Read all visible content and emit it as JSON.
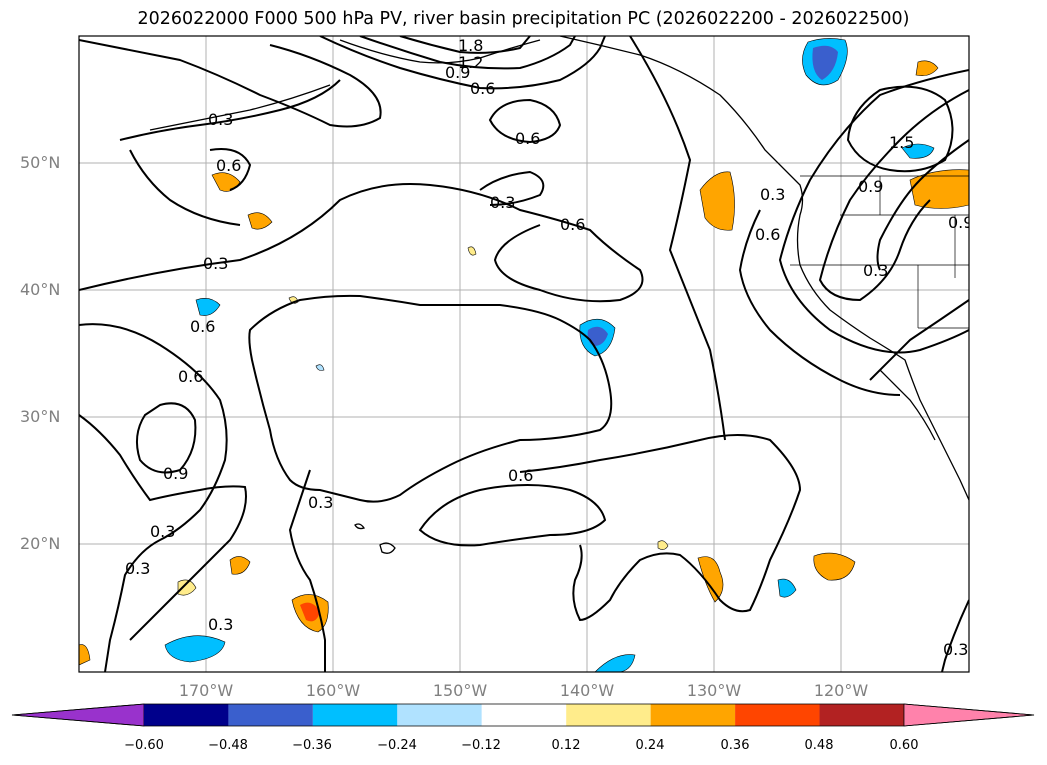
{
  "title": "2026022000 F000 500 hPa PV, river basin precipitation PC (2026022200 - 2026022500)",
  "lat_labels": [
    "50°N",
    "40°N",
    "30°N",
    "20°N"
  ],
  "lon_labels": [
    "170°W",
    "160°W",
    "150°W",
    "140°W",
    "130°W",
    "120°W"
  ],
  "contour_labels": [
    "1.8",
    "1.2",
    "0.9",
    "0.6",
    "0.6",
    "0.6",
    "0.3",
    "0.6",
    "0.3",
    "0.6",
    "0.6",
    "0.9",
    "0.3",
    "0.3",
    "0.3",
    "0.6",
    "0.3",
    "0.3",
    "1.5",
    "0.9",
    "0.6",
    "0.3",
    "0.9",
    "0.3",
    "0.3"
  ],
  "colorbar": {
    "ticks": [
      "−0.60",
      "−0.48",
      "−0.36",
      "−0.24",
      "−0.12",
      "0.12",
      "0.24",
      "0.36",
      "0.48",
      "0.60"
    ],
    "colors": [
      "#9932CC",
      "#00008B",
      "#3A5FCD",
      "#00BFFF",
      "#B0E2FF",
      "#FFFFFF",
      "#FFEC8B",
      "#FFA500",
      "#FF4500",
      "#B22222",
      "#FF82AB"
    ]
  }
}
